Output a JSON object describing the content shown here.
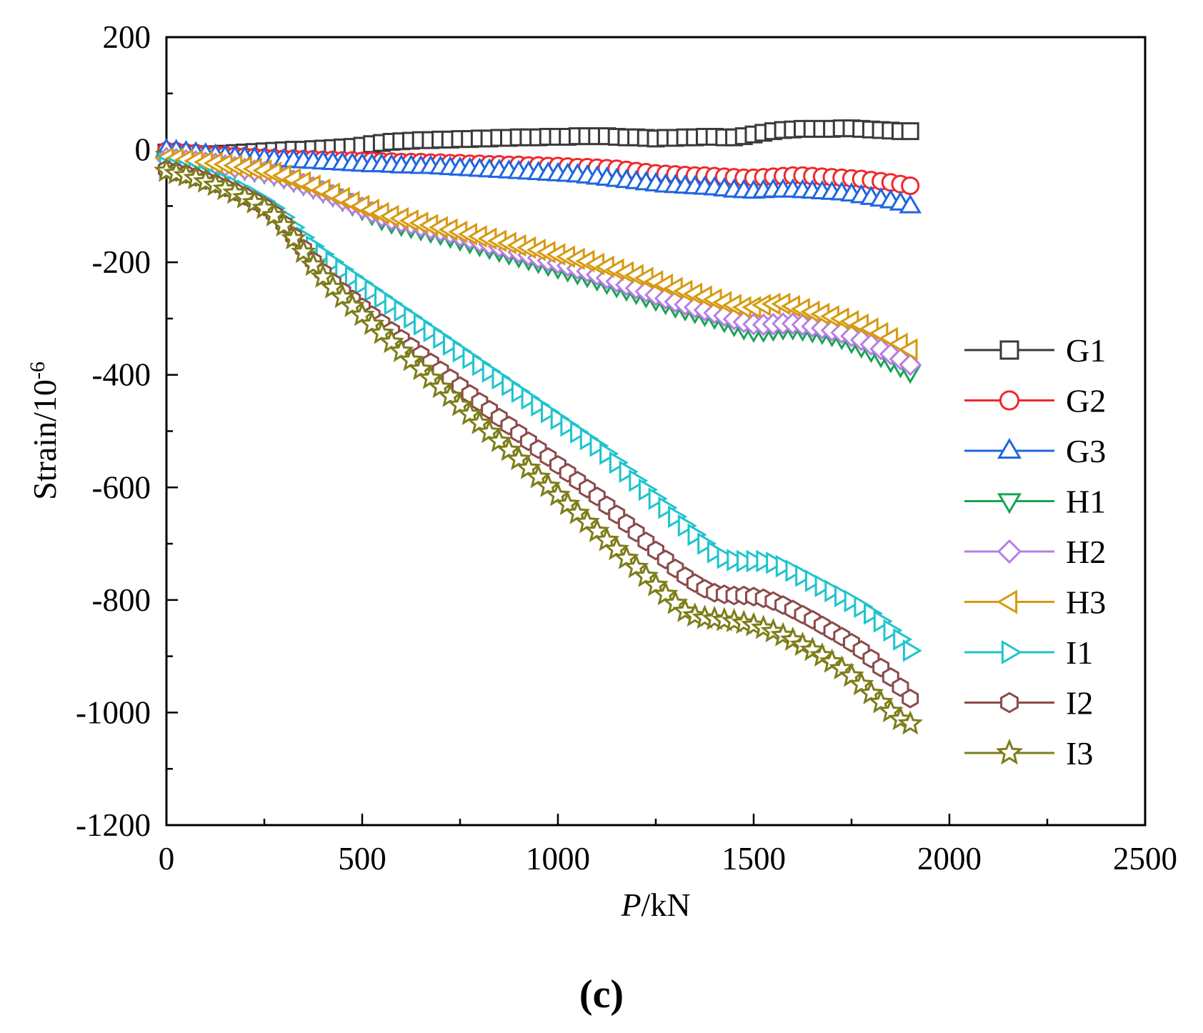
{
  "chart_data": {
    "type": "line",
    "title": "",
    "xlabel": {
      "italic": "P",
      "rest": "/kN"
    },
    "ylabel": {
      "base": "Strain/10",
      "sup": "-6"
    },
    "xlim": [
      0,
      2500
    ],
    "ylim": [
      -1200,
      200
    ],
    "xticks": [
      0,
      500,
      1000,
      1500,
      2000,
      2500
    ],
    "yticks": [
      200,
      0,
      -200,
      -400,
      -600,
      -800,
      -1000,
      -1200
    ],
    "xtick_labels": [
      "0",
      "500",
      "1000",
      "1500",
      "2000",
      "2500"
    ],
    "ytick_labels": [
      "200",
      "0",
      "-200",
      "-400",
      "-600",
      "-800",
      "-1000",
      "-1200"
    ],
    "grid": false,
    "legend_position": "right",
    "panel_label": "(c)",
    "x": [
      0,
      25,
      50,
      75,
      100,
      125,
      150,
      175,
      200,
      225,
      250,
      275,
      300,
      325,
      350,
      375,
      400,
      425,
      450,
      475,
      500,
      525,
      550,
      575,
      600,
      625,
      650,
      675,
      700,
      725,
      750,
      775,
      800,
      825,
      850,
      875,
      900,
      925,
      950,
      975,
      1000,
      1025,
      1050,
      1075,
      1100,
      1125,
      1150,
      1175,
      1200,
      1225,
      1250,
      1275,
      1300,
      1325,
      1350,
      1375,
      1400,
      1425,
      1450,
      1475,
      1500,
      1525,
      1550,
      1575,
      1600,
      1625,
      1650,
      1675,
      1700,
      1725,
      1750,
      1775,
      1800,
      1825,
      1850,
      1875,
      1900
    ],
    "series": [
      {
        "name": "G1",
        "color": "#3a3a3a",
        "marker": "square",
        "values": [
          -5,
          -6,
          -7,
          -8,
          -8,
          -8,
          -7,
          -6,
          -5,
          -4,
          -3,
          -2,
          -1,
          0,
          0,
          1,
          2,
          3,
          4,
          5,
          7,
          10,
          12,
          14,
          15,
          16,
          17,
          17,
          18,
          18,
          19,
          19,
          20,
          20,
          21,
          21,
          22,
          22,
          22,
          23,
          23,
          23,
          24,
          24,
          24,
          24,
          23,
          22,
          22,
          21,
          20,
          21,
          21,
          22,
          22,
          23,
          23,
          22,
          22,
          24,
          27,
          30,
          33,
          35,
          36,
          37,
          37,
          37,
          37,
          38,
          38,
          37,
          36,
          35,
          34,
          33,
          33
        ]
      },
      {
        "name": "G2",
        "color": "#f0282c",
        "marker": "circle",
        "values": [
          -2,
          -3,
          -5,
          -6,
          -8,
          -9,
          -10,
          -11,
          -12,
          -13,
          -14,
          -15,
          -16,
          -16,
          -17,
          -17,
          -18,
          -18,
          -19,
          -19,
          -20,
          -20,
          -21,
          -21,
          -22,
          -22,
          -22,
          -23,
          -23,
          -24,
          -24,
          -25,
          -25,
          -26,
          -26,
          -27,
          -27,
          -28,
          -28,
          -29,
          -29,
          -30,
          -31,
          -31,
          -32,
          -33,
          -34,
          -36,
          -38,
          -40,
          -42,
          -43,
          -44,
          -45,
          -46,
          -46,
          -47,
          -48,
          -49,
          -50,
          -50,
          -49,
          -48,
          -47,
          -46,
          -46,
          -47,
          -48,
          -49,
          -50,
          -51,
          -52,
          -54,
          -56,
          -58,
          -61,
          -64
        ]
      },
      {
        "name": "G3",
        "color": "#1f66e0",
        "marker": "triangle-up",
        "values": [
          0,
          -2,
          -4,
          -6,
          -8,
          -10,
          -12,
          -13,
          -14,
          -15,
          -16,
          -17,
          -18,
          -19,
          -20,
          -21,
          -22,
          -23,
          -24,
          -25,
          -26,
          -27,
          -27,
          -28,
          -29,
          -29,
          -30,
          -30,
          -31,
          -32,
          -33,
          -34,
          -35,
          -36,
          -37,
          -38,
          -39,
          -40,
          -41,
          -42,
          -43,
          -44,
          -45,
          -47,
          -49,
          -51,
          -53,
          -55,
          -57,
          -59,
          -61,
          -63,
          -64,
          -65,
          -66,
          -67,
          -68,
          -70,
          -72,
          -73,
          -74,
          -73,
          -72,
          -72,
          -72,
          -73,
          -74,
          -75,
          -76,
          -77,
          -79,
          -82,
          -85,
          -88,
          -91,
          -95,
          -100
        ]
      },
      {
        "name": "H1",
        "color": "#1aa356",
        "marker": "triangle-down",
        "values": [
          -15,
          -18,
          -20,
          -22,
          -24,
          -26,
          -29,
          -32,
          -35,
          -38,
          -41,
          -45,
          -50,
          -56,
          -62,
          -68,
          -75,
          -82,
          -90,
          -98,
          -106,
          -115,
          -124,
          -130,
          -134,
          -138,
          -142,
          -146,
          -150,
          -155,
          -160,
          -165,
          -170,
          -175,
          -180,
          -185,
          -190,
          -195,
          -200,
          -205,
          -210,
          -215,
          -220,
          -225,
          -231,
          -237,
          -243,
          -249,
          -255,
          -261,
          -267,
          -273,
          -279,
          -284,
          -289,
          -294,
          -299,
          -305,
          -312,
          -318,
          -322,
          -322,
          -320,
          -318,
          -318,
          -320,
          -323,
          -326,
          -330,
          -335,
          -342,
          -350,
          -358,
          -367,
          -376,
          -385,
          -395
        ]
      },
      {
        "name": "H2",
        "color": "#b77ee6",
        "marker": "diamond",
        "values": [
          -15,
          -17,
          -19,
          -21,
          -23,
          -25,
          -28,
          -31,
          -34,
          -37,
          -40,
          -44,
          -49,
          -55,
          -61,
          -67,
          -74,
          -81,
          -89,
          -96,
          -103,
          -111,
          -118,
          -124,
          -128,
          -132,
          -136,
          -140,
          -144,
          -148,
          -153,
          -158,
          -163,
          -168,
          -172,
          -177,
          -182,
          -187,
          -192,
          -197,
          -201,
          -206,
          -211,
          -216,
          -222,
          -228,
          -234,
          -240,
          -246,
          -252,
          -258,
          -264,
          -270,
          -275,
          -280,
          -285,
          -290,
          -295,
          -301,
          -306,
          -310,
          -311,
          -310,
          -309,
          -309,
          -311,
          -314,
          -317,
          -321,
          -325,
          -331,
          -338,
          -346,
          -354,
          -363,
          -372,
          -382
        ]
      },
      {
        "name": "H3",
        "color": "#d69a10",
        "marker": "triangle-left",
        "values": [
          -15,
          -16,
          -18,
          -20,
          -22,
          -24,
          -26,
          -28,
          -31,
          -34,
          -37,
          -41,
          -46,
          -52,
          -58,
          -64,
          -71,
          -78,
          -86,
          -93,
          -100,
          -107,
          -113,
          -118,
          -122,
          -126,
          -130,
          -134,
          -138,
          -142,
          -146,
          -150,
          -154,
          -158,
          -162,
          -166,
          -170,
          -174,
          -178,
          -182,
          -186,
          -190,
          -194,
          -198,
          -203,
          -208,
          -213,
          -218,
          -223,
          -228,
          -234,
          -240,
          -246,
          -251,
          -256,
          -261,
          -266,
          -271,
          -276,
          -280,
          -280,
          -276,
          -274,
          -274,
          -278,
          -283,
          -288,
          -292,
          -296,
          -300,
          -305,
          -311,
          -318,
          -326,
          -335,
          -345,
          -355
        ]
      },
      {
        "name": "I1",
        "color": "#1fc4cc",
        "marker": "triangle-right",
        "values": [
          -30,
          -33,
          -37,
          -41,
          -46,
          -52,
          -58,
          -65,
          -73,
          -82,
          -92,
          -104,
          -120,
          -138,
          -156,
          -172,
          -186,
          -200,
          -213,
          -226,
          -238,
          -250,
          -262,
          -274,
          -286,
          -298,
          -310,
          -322,
          -334,
          -346,
          -358,
          -370,
          -382,
          -394,
          -406,
          -418,
          -430,
          -442,
          -454,
          -466,
          -478,
          -490,
          -502,
          -514,
          -526,
          -540,
          -556,
          -572,
          -588,
          -604,
          -620,
          -636,
          -652,
          -668,
          -684,
          -700,
          -715,
          -725,
          -729,
          -731,
          -731,
          -731,
          -734,
          -740,
          -748,
          -757,
          -766,
          -775,
          -784,
          -793,
          -802,
          -812,
          -824,
          -838,
          -854,
          -870,
          -890
        ]
      },
      {
        "name": "I2",
        "color": "#8b4a4a",
        "marker": "hexagon",
        "values": [
          -35,
          -39,
          -43,
          -48,
          -54,
          -60,
          -67,
          -74,
          -82,
          -91,
          -101,
          -114,
          -132,
          -154,
          -176,
          -198,
          -218,
          -236,
          -252,
          -266,
          -280,
          -294,
          -308,
          -322,
          -336,
          -350,
          -364,
          -378,
          -392,
          -406,
          -420,
          -434,
          -448,
          -462,
          -476,
          -490,
          -504,
          -518,
          -532,
          -546,
          -560,
          -574,
          -588,
          -602,
          -616,
          -632,
          -648,
          -664,
          -680,
          -696,
          -712,
          -728,
          -744,
          -758,
          -770,
          -780,
          -787,
          -790,
          -792,
          -792,
          -794,
          -797,
          -802,
          -809,
          -817,
          -826,
          -835,
          -845,
          -855,
          -865,
          -876,
          -889,
          -904,
          -920,
          -937,
          -955,
          -975
        ]
      },
      {
        "name": "I3",
        "color": "#7d7d1a",
        "marker": "star",
        "values": [
          -38,
          -42,
          -46,
          -51,
          -57,
          -63,
          -70,
          -77,
          -85,
          -94,
          -104,
          -117,
          -135,
          -158,
          -182,
          -205,
          -226,
          -245,
          -262,
          -278,
          -294,
          -310,
          -326,
          -342,
          -358,
          -374,
          -390,
          -406,
          -422,
          -438,
          -454,
          -470,
          -486,
          -502,
          -518,
          -534,
          -550,
          -566,
          -582,
          -598,
          -614,
          -630,
          -646,
          -662,
          -678,
          -694,
          -710,
          -726,
          -742,
          -758,
          -774,
          -790,
          -806,
          -820,
          -828,
          -832,
          -834,
          -836,
          -838,
          -841,
          -845,
          -850,
          -856,
          -863,
          -871,
          -880,
          -889,
          -899,
          -910,
          -922,
          -935,
          -950,
          -966,
          -982,
          -998,
          -1012,
          -1020
        ]
      }
    ]
  }
}
